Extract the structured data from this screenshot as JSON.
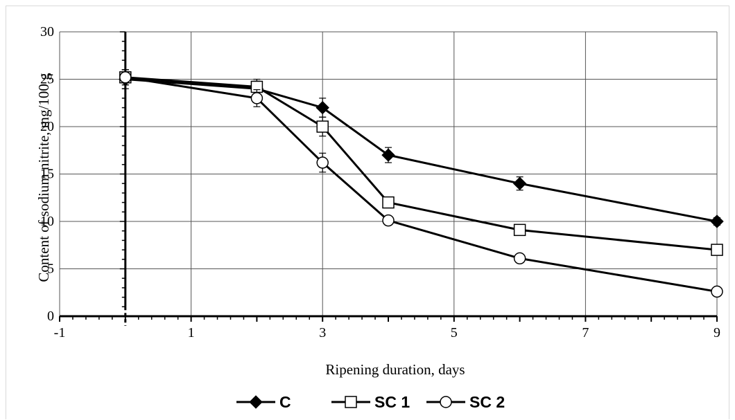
{
  "chart_data": {
    "type": "line",
    "title": "",
    "xlabel": "Ripening duration, days",
    "ylabel": "Content of sodium nitrite, mg/100  g",
    "xlim": [
      -1,
      9
    ],
    "ylim": [
      0,
      30
    ],
    "x_ticks": [
      "-1",
      "1",
      "3",
      "5",
      "7",
      "9"
    ],
    "y_ticks": [
      "0",
      "5",
      "10",
      "15",
      "20",
      "25",
      "30"
    ],
    "grid": true,
    "legend": "bottom",
    "series": [
      {
        "name": "C",
        "marker": "filled-diamond",
        "x": [
          0,
          2,
          3,
          4,
          6,
          9
        ],
        "y": [
          25.0,
          24.0,
          22.0,
          17.0,
          14.0,
          10.0
        ],
        "error": [
          1.0,
          0.8,
          1.0,
          0.8,
          0.7,
          0.4
        ]
      },
      {
        "name": "SC 1",
        "marker": "open-square",
        "x": [
          0,
          2,
          3,
          4,
          6,
          9
        ],
        "y": [
          25.2,
          24.2,
          20.0,
          12.0,
          9.1,
          7.0
        ],
        "error": [
          0.8,
          0.8,
          1.0,
          0.5,
          0.4,
          0.3
        ]
      },
      {
        "name": "SC 2",
        "marker": "open-circle",
        "x": [
          0,
          2,
          3,
          4,
          6,
          9
        ],
        "y": [
          25.2,
          23.0,
          16.2,
          10.1,
          6.1,
          2.6
        ],
        "error": [
          0.8,
          0.9,
          1.0,
          0.3,
          0.3,
          0.3
        ]
      }
    ]
  }
}
